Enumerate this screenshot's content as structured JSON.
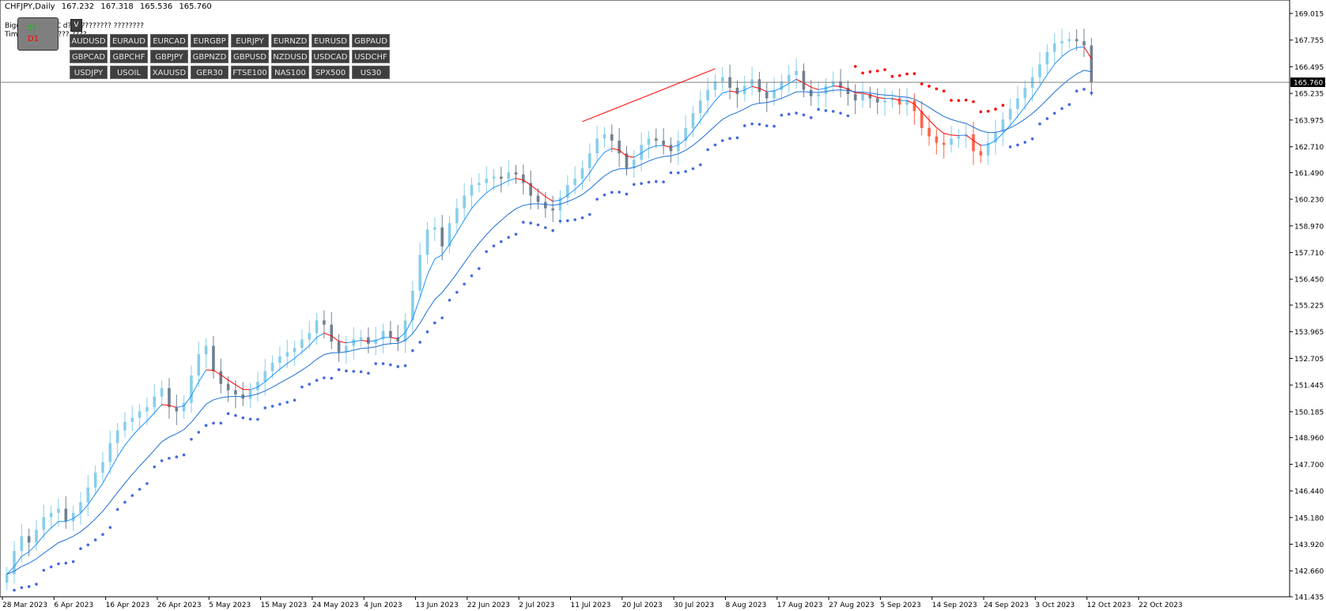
{
  "header": {
    "symbol": "CHFJPY,Daily",
    "open": "167.232",
    "high": "167.318",
    "low": "165.536",
    "close": "165.760"
  },
  "overlay": {
    "line1": "Bigger TF OHLC d?? ????????? ????????",
    "line2": "TimeFrame ?????? ????",
    "tf_label": "TF",
    "tf_value": "D1",
    "v_button": "V"
  },
  "symbols": [
    "AUDUSD",
    "EURAUD",
    "EURCAD",
    "EURGBP",
    "EURJPY",
    "EURNZD",
    "EURUSD",
    "GBPAUD",
    "GBPCAD",
    "GBPCHF",
    "GBPJPY",
    "GBPNZD",
    "GBPUSD",
    "NZDUSD",
    "USDCAD",
    "USDCHF",
    "USDJPY",
    "USOIL",
    "XAUUSD",
    "GER30",
    "FTSE100",
    "NAS100",
    "SPX500",
    "US30"
  ],
  "colors": {
    "bull": "#87ceeb",
    "bear": "#708090",
    "bull_alt": "#ff6347",
    "ma_fast_up": "#1e90ff",
    "ma_fast_down": "#ff0000",
    "ma_slow": "#1e6fd6",
    "sar_up": "#4169e1",
    "sar_down": "#ff0000",
    "price_line": "#808080",
    "price_label_bg": "#000000",
    "axis": "#000000"
  },
  "chart_data": {
    "type": "candlestick",
    "title": "CHFJPY,Daily",
    "ylim": [
      141.435,
      169.649
    ],
    "y_ticks": [
      "169.015",
      "167.755",
      "166.495",
      "165.235",
      "163.975",
      "162.710",
      "161.490",
      "160.230",
      "158.970",
      "157.710",
      "156.450",
      "155.225",
      "153.965",
      "152.705",
      "151.445",
      "150.185",
      "148.960",
      "147.700",
      "146.440",
      "145.180",
      "143.920",
      "142.660",
      "141.435"
    ],
    "current_price": "165.760",
    "x_labels": [
      "28 Mar 2023",
      "6 Apr 2023",
      "16 Apr 2023",
      "26 Apr 2023",
      "5 May 2023",
      "15 May 2023",
      "24 May 2023",
      "4 Jun 2023",
      "13 Jun 2023",
      "22 Jun 2023",
      "2 Jul 2023",
      "11 Jul 2023",
      "20 Jul 2023",
      "30 Jul 2023",
      "8 Aug 2023",
      "17 Aug 2023",
      "27 Aug 2023",
      "5 Sep 2023",
      "14 Sep 2023",
      "24 Sep 2023",
      "3 Oct 2023",
      "12 Oct 2023",
      "22 Oct 2023"
    ],
    "closes": [
      142.5,
      143.6,
      144.3,
      144.0,
      144.6,
      145.2,
      145.4,
      145.6,
      145.0,
      145.4,
      145.9,
      146.6,
      147.3,
      147.8,
      148.7,
      149.3,
      149.7,
      149.9,
      150.2,
      150.4,
      150.9,
      151.3,
      150.4,
      150.2,
      150.6,
      151.9,
      152.9,
      153.3,
      152.1,
      151.5,
      151.2,
      151.0,
      150.8,
      151.2,
      151.6,
      152.1,
      152.5,
      152.8,
      153.0,
      153.2,
      153.6,
      153.9,
      154.5,
      154.3,
      153.5,
      153.0,
      153.3,
      153.6,
      153.7,
      153.4,
      153.6,
      154.0,
      153.7,
      153.5,
      154.5,
      155.9,
      157.6,
      158.8,
      158.9,
      158.0,
      159.1,
      159.8,
      160.4,
      160.9,
      161.0,
      161.2,
      161.3,
      161.2,
      161.5,
      161.4,
      161.0,
      160.4,
      160.1,
      159.8,
      159.7,
      160.3,
      160.9,
      161.2,
      161.7,
      162.4,
      163.1,
      163.3,
      163.0,
      162.4,
      161.7,
      162.1,
      162.8,
      163.1,
      163.0,
      162.8,
      162.5,
      163.0,
      163.6,
      164.3,
      164.9,
      165.4,
      165.8,
      166.0,
      165.5,
      165.2,
      165.6,
      165.9,
      165.3,
      165.0,
      165.4,
      165.8,
      166.1,
      166.3,
      165.4,
      165.1,
      165.2,
      165.6,
      165.8,
      165.5,
      165.2,
      164.9,
      165.2,
      165.0,
      164.8,
      164.9,
      165.0,
      164.7,
      164.9,
      164.4,
      163.6,
      163.2,
      162.9,
      162.8,
      163.1,
      163.2,
      163.3,
      162.5,
      162.3,
      162.9,
      163.4,
      164.0,
      164.5,
      165.0,
      165.5,
      166.0,
      166.6,
      167.2,
      167.6,
      167.7,
      167.8,
      167.7,
      167.5,
      165.76
    ]
  }
}
